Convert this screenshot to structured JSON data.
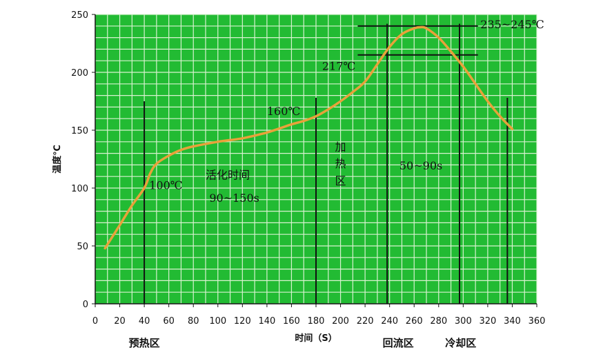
{
  "chart_data": {
    "type": "line",
    "title": "",
    "xlabel": "时间（S）",
    "ylabel": "温度℃",
    "xlim": [
      0,
      360
    ],
    "ylim": [
      0,
      250
    ],
    "x_ticks": [
      0,
      20,
      40,
      60,
      80,
      100,
      120,
      140,
      160,
      180,
      200,
      220,
      240,
      260,
      280,
      300,
      320,
      340,
      360
    ],
    "y_ticks": [
      0,
      50,
      100,
      150,
      200,
      250
    ],
    "grid": true,
    "colors": {
      "plot_bg": "#22bb33",
      "grid": "#d8f2d0",
      "curve": "#e8a23a",
      "lines": "#111111"
    },
    "series": [
      {
        "x": [
          8,
          20,
          30,
          40,
          45,
          50,
          60,
          70,
          80,
          100,
          120,
          140,
          160,
          170,
          180,
          190,
          200,
          210,
          220,
          230,
          240,
          250,
          260,
          265,
          270,
          280,
          290,
          300,
          310,
          320,
          330,
          340
        ],
        "y": [
          48,
          68,
          85,
          100,
          113,
          121,
          128,
          133,
          136,
          140,
          143,
          148,
          155,
          158,
          162,
          168,
          175,
          183,
          192,
          207,
          222,
          233,
          238,
          239,
          238,
          230,
          218,
          205,
          190,
          175,
          162,
          151
        ]
      }
    ],
    "vlines": [
      {
        "x": 40,
        "y": [
          0,
          175
        ]
      },
      {
        "x": 180,
        "y": [
          0,
          178
        ]
      },
      {
        "x": 238,
        "y": [
          0,
          242
        ]
      },
      {
        "x": 297,
        "y": [
          0,
          242
        ]
      },
      {
        "x": 336,
        "y": [
          0,
          178
        ]
      }
    ],
    "hlines": [
      {
        "y": 240,
        "x": [
          214,
          312
        ]
      },
      {
        "y": 215,
        "x": [
          214,
          312
        ]
      }
    ],
    "annotations": [
      {
        "text": "100℃",
        "x": 44,
        "y": 99
      },
      {
        "text": "160℃",
        "x": 140,
        "y": 163
      },
      {
        "text": "217℃",
        "x": 185,
        "y": 202
      },
      {
        "text": "235~245℃",
        "x": 314,
        "y": 238
      },
      {
        "text": "50~90s",
        "x": 248,
        "y": 116
      },
      {
        "text": "活化时间",
        "x": 90,
        "y": 108
      },
      {
        "text": "90~150s",
        "x": 93,
        "y": 88
      }
    ],
    "vertical_annotation": {
      "chars": [
        "加",
        "热",
        "区"
      ],
      "x": 200,
      "y": [
        132,
        118,
        103
      ]
    },
    "zone_labels": [
      {
        "text": "预热区",
        "x": 40
      },
      {
        "text": "回流区",
        "x": 247
      },
      {
        "text": "冷却区",
        "x": 298
      }
    ]
  }
}
